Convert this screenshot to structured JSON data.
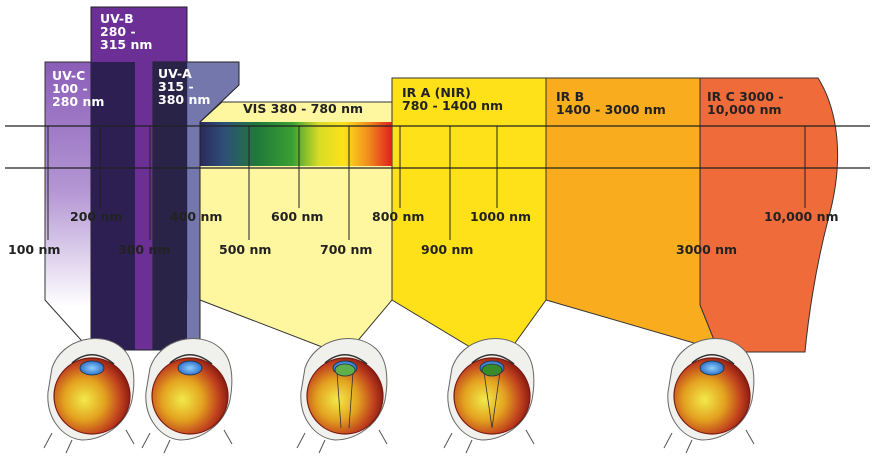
{
  "bands": {
    "uvc": "UV-C 100 - 280 nm",
    "uvb": "UV-B 280 - 315 nm",
    "uva": "UV-A 315 - 380 nm",
    "vis": "VIS 380 - 780 nm",
    "ira": "IR A (NIR) 780 - 1400 nm",
    "irb": "IR B 1400 - 3000 nm",
    "irc": "IR C 3000 - 10,000 nm"
  },
  "wavelengths": {
    "w100": "100 nm",
    "w200": "200 nm",
    "w300": "300 nm",
    "w400": "400 nm",
    "w500": "500 nm",
    "w600": "600 nm",
    "w700": "700 nm",
    "w800": "800 nm",
    "w900": "900 nm",
    "w1000": "1000 nm",
    "w3000": "3000 nm",
    "w10000": "10,000 nm"
  },
  "colors": {
    "uvc": "#8a5db8",
    "uvb": "#6b2f96",
    "uva": "#5a5f9e",
    "vis": "#fff7a0",
    "ira": "#ffe11a",
    "irb": "#f9ac1e",
    "irc": "#ef6b3a"
  }
}
